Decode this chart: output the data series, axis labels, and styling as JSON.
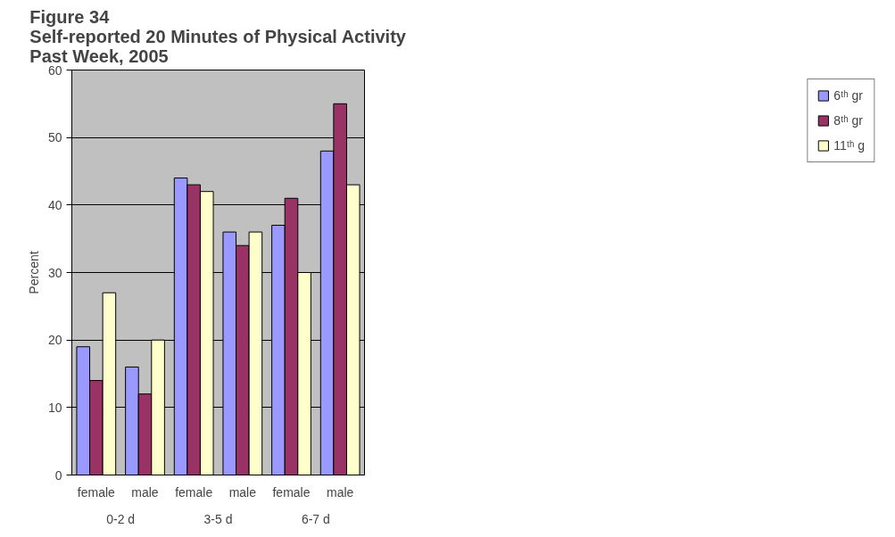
{
  "chart_data": {
    "type": "bar",
    "title": "Figure 34\nSelf-reported 20 Minutes of Physical Activity\nPast Week, 2005",
    "ylabel": "Percent",
    "categories": [
      "female",
      "male",
      "female",
      "male",
      "female",
      "male"
    ],
    "annotations": [
      "0-2 d",
      "3-5 d",
      "6-7 d"
    ],
    "series": [
      {
        "name": "6ᵗʰ gr",
        "color": "#9999ff",
        "values": [
          19,
          16,
          44,
          36,
          37,
          48
        ]
      },
      {
        "name": "8ᵗʰ gr",
        "color": "#993366",
        "values": [
          14,
          12,
          43,
          34,
          41,
          55
        ]
      },
      {
        "name": "11ᵗʰ g",
        "color": "#ffffcc",
        "values": [
          27,
          20,
          42,
          36,
          30,
          43
        ]
      }
    ],
    "ylim": [
      0,
      60
    ],
    "yticks": [
      0,
      10,
      20,
      30,
      40,
      50,
      60
    ],
    "grid": "y",
    "legend": "right"
  }
}
